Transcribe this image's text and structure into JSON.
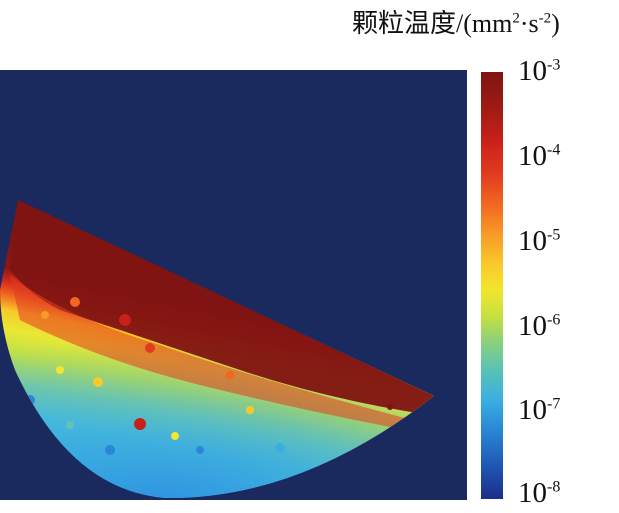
{
  "chart_data": {
    "type": "heatmap",
    "colorbar": {
      "title_main": "颗粒温度/(mm",
      "title_exp1": "2",
      "title_mid": "·s",
      "title_exp2": "-2",
      "title_end": ")",
      "scale": "log",
      "range": [
        1e-08,
        0.001
      ],
      "colormap": "jet",
      "ticks": [
        {
          "base": "10",
          "exponent": "-3",
          "value": 0.001
        },
        {
          "base": "10",
          "exponent": "-4",
          "value": 0.0001
        },
        {
          "base": "10",
          "exponent": "-5",
          "value": 1e-05
        },
        {
          "base": "10",
          "exponent": "-6",
          "value": 1e-06
        },
        {
          "base": "10",
          "exponent": "-7",
          "value": 1e-07
        },
        {
          "base": "10",
          "exponent": "-8",
          "value": 1e-08
        }
      ]
    },
    "field_description": "granular temperature in a half-filled rotating drum; high values in the upper free-surface layer, decreasing toward the drum wall",
    "colors": {
      "background": "#1b2a5e",
      "max": "#7f1412",
      "high": "#e23b1f",
      "mid": "#f2e62e",
      "low": "#57c2b7",
      "lower": "#39aee2"
    }
  }
}
